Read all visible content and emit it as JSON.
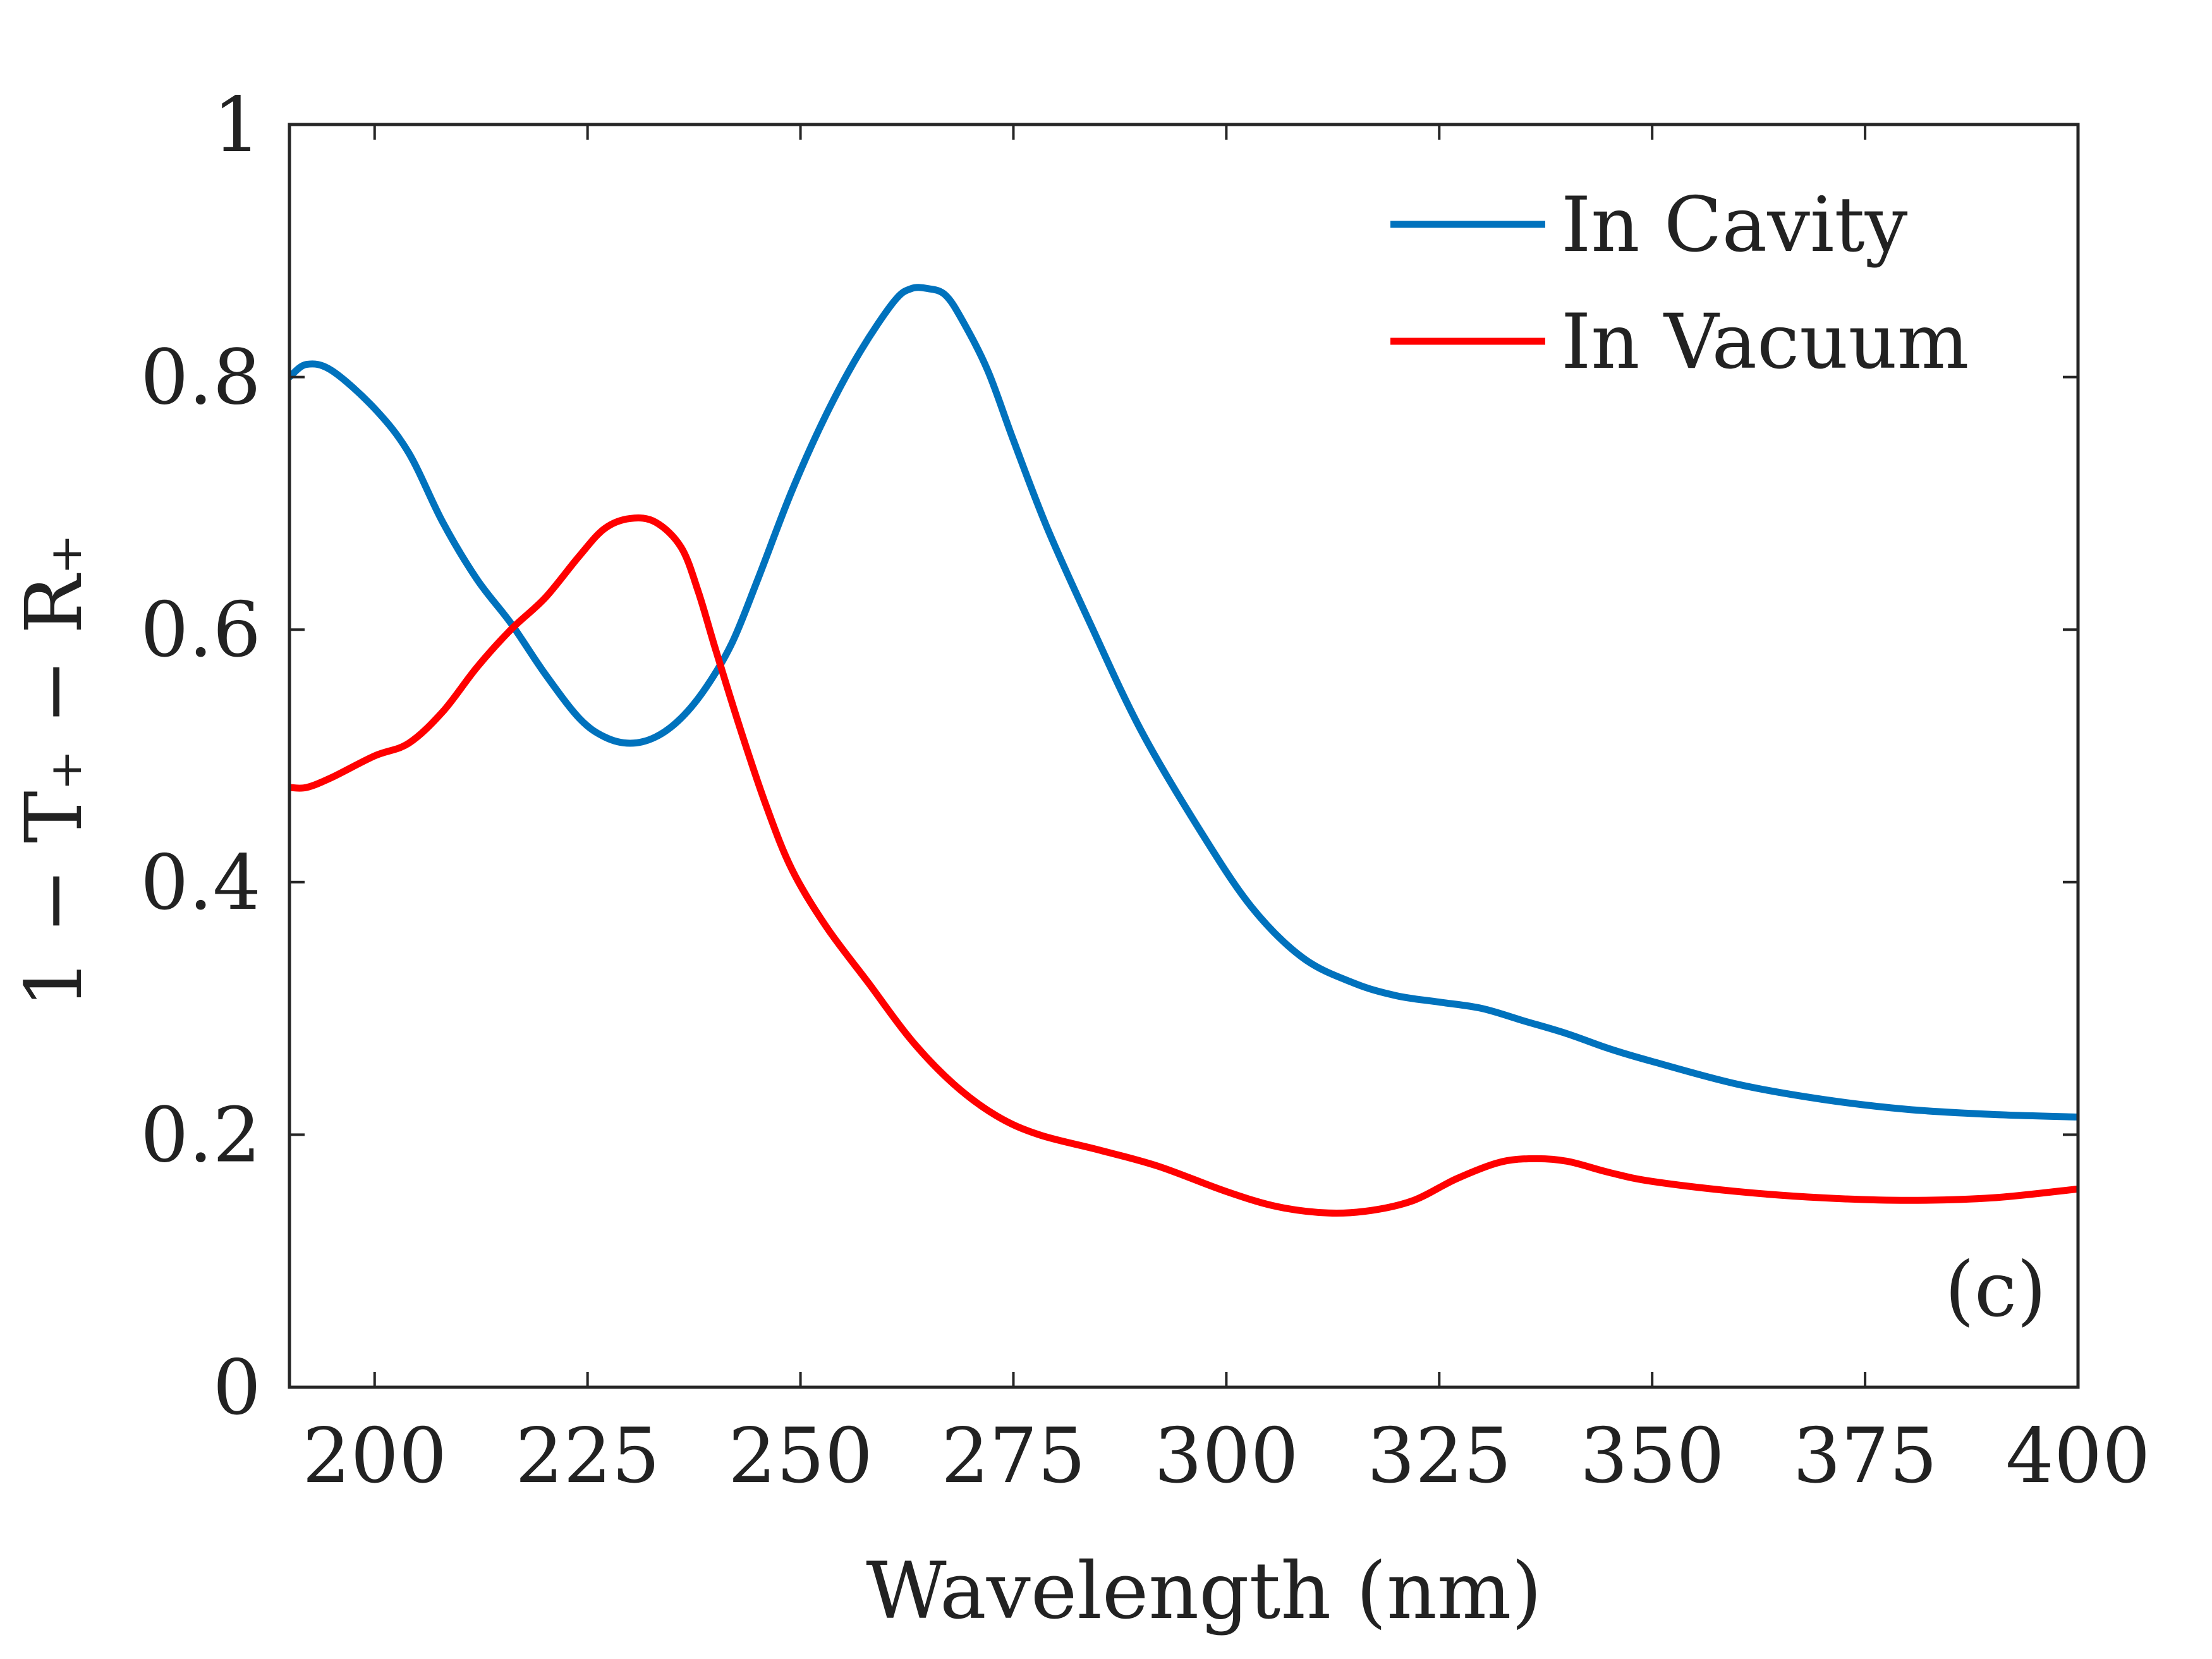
{
  "chart_data": {
    "type": "line",
    "title": "",
    "xlabel": "Wavelength (nm)",
    "ylabel": "1 − T₊ − R₊",
    "xlim": [
      190,
      400
    ],
    "ylim": [
      0,
      1
    ],
    "xticks": [
      200,
      225,
      250,
      275,
      300,
      325,
      350,
      375,
      400
    ],
    "yticks": [
      0,
      0.2,
      0.4,
      0.6,
      0.8,
      1
    ],
    "xtick_labels": [
      "200",
      "225",
      "250",
      "275",
      "300",
      "325",
      "350",
      "375",
      "400"
    ],
    "ytick_labels": [
      "0",
      "0.2",
      "0.4",
      "0.6",
      "0.8",
      "1"
    ],
    "grid": false,
    "legend_position": "top-right",
    "annotation": "(c)",
    "series": [
      {
        "name": "In Cavity",
        "color": "#0072BD",
        "x": [
          190,
          192,
          195,
          200,
          204,
          208,
          212,
          216,
          220,
          224,
          227,
          230,
          233,
          236,
          239,
          242,
          245,
          249,
          253,
          257,
          261,
          263,
          265,
          267,
          269,
          272,
          275,
          279,
          284,
          290,
          297,
          303,
          309,
          315,
          320,
          325,
          330,
          335,
          340,
          345,
          350,
          360,
          370,
          380,
          390,
          400
        ],
        "y": [
          0.8,
          0.81,
          0.805,
          0.775,
          0.74,
          0.685,
          0.64,
          0.605,
          0.565,
          0.53,
          0.515,
          0.51,
          0.515,
          0.53,
          0.555,
          0.59,
          0.64,
          0.71,
          0.77,
          0.82,
          0.86,
          0.87,
          0.87,
          0.865,
          0.845,
          0.805,
          0.75,
          0.68,
          0.605,
          0.52,
          0.44,
          0.38,
          0.34,
          0.32,
          0.31,
          0.305,
          0.3,
          0.29,
          0.28,
          0.268,
          0.258,
          0.24,
          0.228,
          0.22,
          0.216,
          0.214
        ]
      },
      {
        "name": "In Vacuum",
        "color": "#FF0000",
        "x": [
          190,
          192,
          195,
          200,
          204,
          208,
          212,
          216,
          220,
          224,
          227,
          230,
          233,
          236,
          238,
          240,
          243,
          246,
          249,
          253,
          258,
          263,
          268,
          273,
          278,
          285,
          292,
          300,
          306,
          312,
          317,
          322,
          327,
          332,
          336,
          340,
          345,
          350,
          360,
          370,
          380,
          390,
          400
        ],
        "y": [
          0.475,
          0.475,
          0.483,
          0.5,
          0.51,
          0.535,
          0.57,
          0.6,
          0.625,
          0.658,
          0.68,
          0.688,
          0.685,
          0.665,
          0.63,
          0.585,
          0.52,
          0.46,
          0.41,
          0.365,
          0.32,
          0.275,
          0.24,
          0.215,
          0.2,
          0.188,
          0.175,
          0.155,
          0.143,
          0.138,
          0.14,
          0.148,
          0.165,
          0.178,
          0.181,
          0.179,
          0.17,
          0.163,
          0.155,
          0.15,
          0.148,
          0.15,
          0.157
        ]
      }
    ]
  }
}
